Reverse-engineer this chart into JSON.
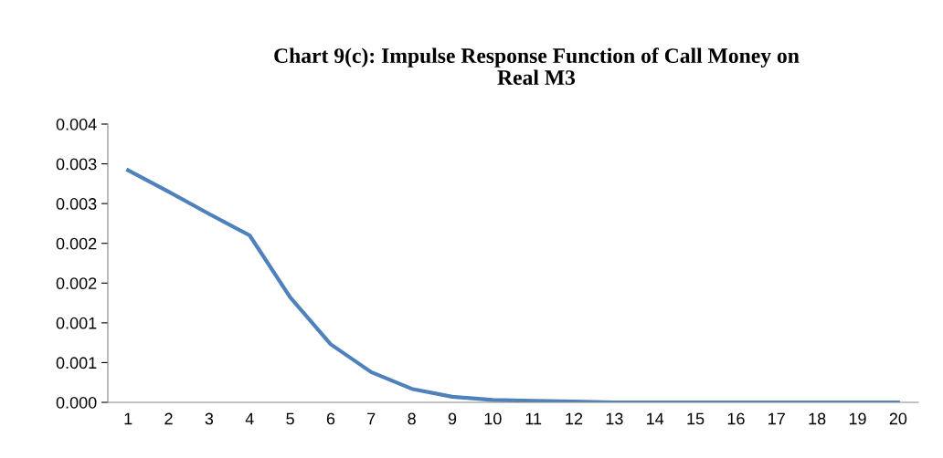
{
  "chart_data": {
    "type": "line",
    "title": "Chart 9(c): Impulse Response Function of Call Money on\nReal M3",
    "categories": [
      "1",
      "2",
      "3",
      "4",
      "5",
      "6",
      "7",
      "8",
      "9",
      "10",
      "11",
      "12",
      "13",
      "14",
      "15",
      "16",
      "17",
      "18",
      "19",
      "20"
    ],
    "series": [
      {
        "color": "#4f81bd",
        "values": [
          0.00292,
          0.00265,
          0.00237,
          0.0021,
          0.00132,
          0.00073,
          0.00038,
          0.00017,
          7e-05,
          3e-05,
          2e-05,
          1e-05,
          0,
          0,
          0,
          0,
          0,
          0,
          0,
          0
        ]
      }
    ],
    "ylim": [
      0,
      0.0035
    ],
    "yticks": [
      {
        "value": 0,
        "label": "0.000"
      },
      {
        "value": 0.0005,
        "label": "0.001"
      },
      {
        "value": 0.001,
        "label": "0.001"
      },
      {
        "value": 0.0015,
        "label": "0.002"
      },
      {
        "value": 0.002,
        "label": "0.002"
      },
      {
        "value": 0.0025,
        "label": "0.003"
      },
      {
        "value": 0.003,
        "label": "0.003"
      },
      {
        "value": 0.0035,
        "label": "0.004"
      }
    ],
    "grid": false,
    "legend": false,
    "marker": "none",
    "line_style": "solid"
  }
}
